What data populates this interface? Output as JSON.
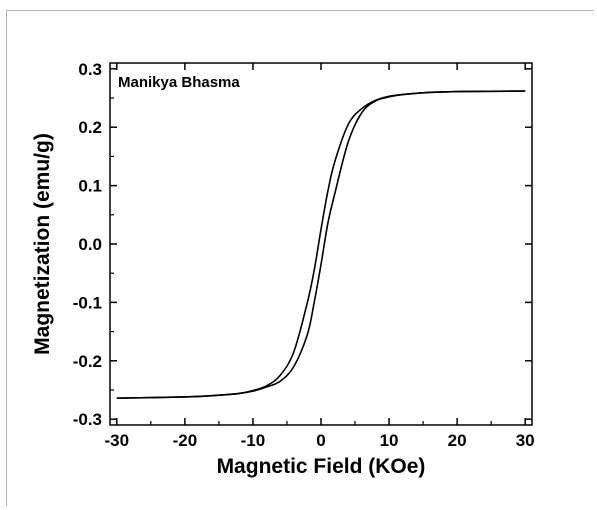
{
  "chart_data": {
    "type": "line",
    "title": "",
    "annotation": "Manikya Bhasma",
    "xlabel": "Magnetic Field (KOe)",
    "ylabel": "Magnetization (emu/g)",
    "xlim": [
      -31,
      31
    ],
    "ylim": [
      -0.31,
      0.31
    ],
    "xticks": [
      -30,
      -20,
      -10,
      0,
      10,
      20,
      30
    ],
    "xtick_labels": [
      "-30",
      "-20",
      "-10",
      "0",
      "10",
      "20",
      "30"
    ],
    "yticks": [
      -0.3,
      -0.2,
      -0.1,
      0.0,
      0.1,
      0.2,
      0.3
    ],
    "ytick_labels": [
      "-0.3",
      "-0.2",
      "-0.1",
      "0.0",
      "0.1",
      "0.2",
      "0.3"
    ],
    "grid": false,
    "legend": false,
    "line_color": "#000000",
    "series": [
      {
        "x": [
          -30,
          -20,
          -15,
          -12,
          -10,
          -8,
          -6,
          -4,
          -2,
          -1,
          0,
          1,
          2,
          4,
          6,
          8,
          10,
          12,
          15,
          20,
          30
        ],
        "y": [
          -0.264,
          -0.262,
          -0.259,
          -0.256,
          -0.252,
          -0.245,
          -0.235,
          -0.21,
          -0.155,
          -0.1,
          -0.035,
          0.035,
          0.085,
          0.175,
          0.225,
          0.245,
          0.252,
          0.256,
          0.259,
          0.261,
          0.262
        ]
      },
      {
        "x": [
          -30,
          -20,
          -15,
          -12,
          -10,
          -8,
          -6,
          -4,
          -2,
          -1,
          0,
          1,
          2,
          4,
          6,
          8,
          10,
          12,
          15,
          20,
          30
        ],
        "y": [
          -0.264,
          -0.262,
          -0.259,
          -0.256,
          -0.251,
          -0.243,
          -0.225,
          -0.185,
          -0.1,
          -0.045,
          0.025,
          0.09,
          0.14,
          0.205,
          0.232,
          0.246,
          0.253,
          0.256,
          0.259,
          0.261,
          0.262
        ]
      }
    ]
  }
}
